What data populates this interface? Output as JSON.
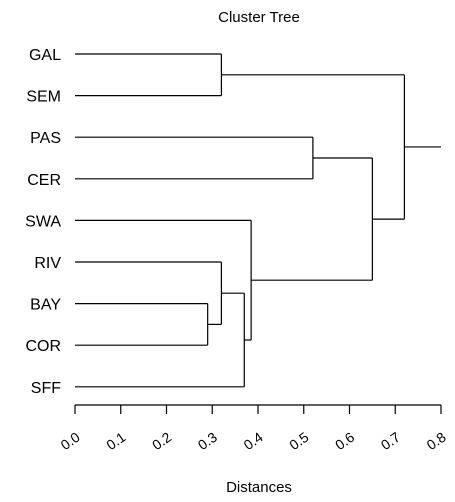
{
  "chart_data": {
    "type": "dendrogram",
    "title": "Cluster Tree",
    "xlabel": "Distances",
    "xlim": [
      0.0,
      0.8
    ],
    "x_ticks": [
      "0.0",
      "0.1",
      "0.2",
      "0.3",
      "0.4",
      "0.5",
      "0.6",
      "0.7",
      "0.8"
    ],
    "leaves": [
      "GAL",
      "SEM",
      "PAS",
      "CER",
      "SWA",
      "RIV",
      "BAY",
      "COR",
      "SFF"
    ],
    "merges": [
      {
        "id": "m1",
        "left": "BAY",
        "right": "COR",
        "distance": 0.29
      },
      {
        "id": "m2",
        "left": "RIV",
        "right": "m1",
        "distance": 0.32
      },
      {
        "id": "m3",
        "left": "GAL",
        "right": "SEM",
        "distance": 0.32
      },
      {
        "id": "m4",
        "left": "m2",
        "right": "SFF",
        "distance": 0.37
      },
      {
        "id": "m5",
        "left": "SWA",
        "right": "m4",
        "distance": 0.385
      },
      {
        "id": "m6",
        "left": "PAS",
        "right": "CER",
        "distance": 0.52
      },
      {
        "id": "m7",
        "left": "m6",
        "right": "m5",
        "distance": 0.65
      },
      {
        "id": "m8",
        "left": "m3",
        "right": "m7",
        "distance": 0.72
      },
      {
        "id": "root",
        "left": "m8",
        "right": null,
        "distance": 0.8
      }
    ]
  }
}
